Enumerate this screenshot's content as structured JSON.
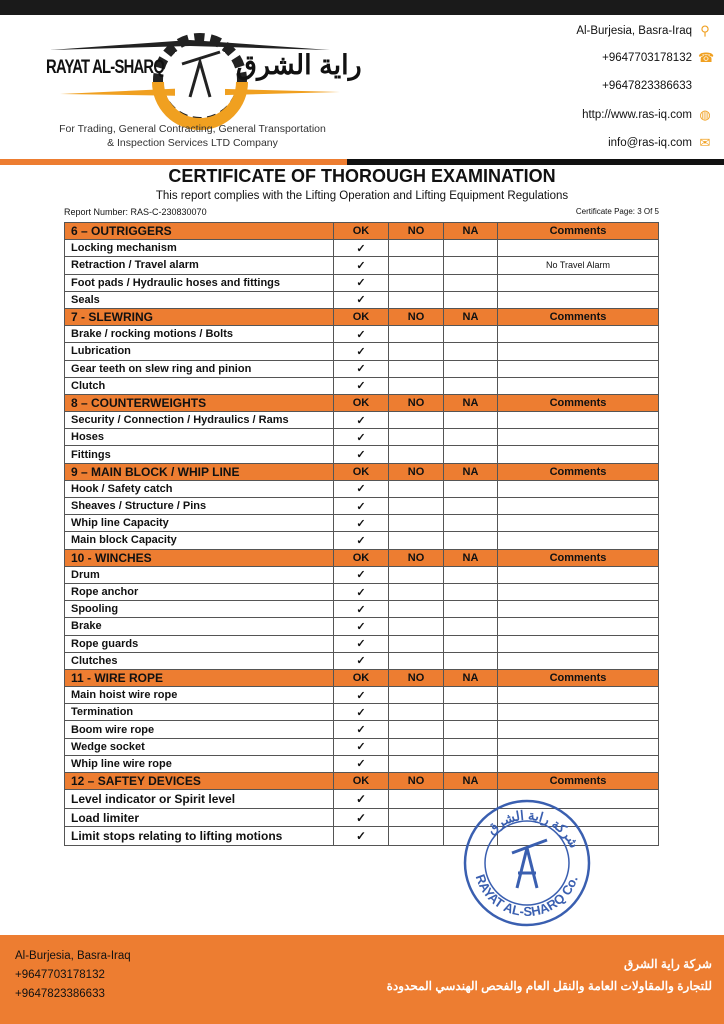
{
  "header": {
    "logo_en": "RAYAT AL-SHARQ",
    "logo_ar": "راية الشرق",
    "tagline": [
      "For Trading, General Contracting, General Transportation",
      "& Inspection Services LTD Company"
    ],
    "contacts": [
      {
        "text": "Al-Burjesia, Basra-Iraq",
        "icon": "location-pin-icon"
      },
      {
        "text": "+9647703178132",
        "icon": "phone-icon"
      },
      {
        "text": "+9647823386633",
        "icon": ""
      },
      {
        "text": "http://www.ras-iq.com",
        "icon": "globe-icon"
      },
      {
        "text": "info@ras-iq.com",
        "icon": "mail-icon"
      }
    ]
  },
  "title": "CERTIFICATE OF THOROUGH EXAMINATION",
  "subtitle": "This report complies with the Lifting Operation and Lifting Equipment Regulations",
  "report_number": "Report Number: RAS-C-230830070",
  "certificate_page": "Certificate Page: 3 Of 5",
  "columns": {
    "ok": "OK",
    "no": "NO",
    "na": "NA",
    "comments": "Comments"
  },
  "check_mark": "✓",
  "sections": [
    {
      "title": "6 – OUTRIGGERS",
      "items": [
        {
          "label": "Locking mechanism",
          "ok": true,
          "comment": ""
        },
        {
          "label": "Retraction / Travel alarm",
          "ok": true,
          "comment": "No Travel Alarm"
        },
        {
          "label": "Foot pads / Hydraulic hoses and fittings",
          "ok": true,
          "comment": ""
        },
        {
          "label": "Seals",
          "ok": true,
          "comment": ""
        }
      ]
    },
    {
      "title": "7 - SLEWRING",
      "items": [
        {
          "label": "Brake / rocking motions / Bolts",
          "ok": true,
          "comment": ""
        },
        {
          "label": "Lubrication",
          "ok": true,
          "comment": ""
        },
        {
          "label": "Gear teeth on slew ring and pinion",
          "ok": true,
          "comment": ""
        },
        {
          "label": "Clutch",
          "ok": true,
          "comment": ""
        }
      ]
    },
    {
      "title": "8 – COUNTERWEIGHTS",
      "items": [
        {
          "label": "Security / Connection / Hydraulics / Rams",
          "ok": true,
          "comment": ""
        },
        {
          "label": "Hoses",
          "ok": true,
          "comment": ""
        },
        {
          "label": "Fittings",
          "ok": true,
          "comment": ""
        }
      ]
    },
    {
      "title": "9 – MAIN BLOCK / WHIP LINE",
      "items": [
        {
          "label": "Hook /  Safety catch",
          "ok": true,
          "comment": ""
        },
        {
          "label": "Sheaves / Structure / Pins",
          "ok": true,
          "comment": ""
        },
        {
          "label": "Whip line Capacity",
          "ok": true,
          "comment": ""
        },
        {
          "label": "Main block Capacity",
          "ok": true,
          "comment": ""
        }
      ]
    },
    {
      "title": "10 - WINCHES",
      "items": [
        {
          "label": "Drum",
          "ok": true,
          "comment": ""
        },
        {
          "label": "Rope anchor",
          "ok": true,
          "comment": ""
        },
        {
          "label": "Spooling",
          "ok": true,
          "comment": ""
        },
        {
          "label": "Brake",
          "ok": true,
          "comment": ""
        },
        {
          "label": "Rope guards",
          "ok": true,
          "comment": ""
        },
        {
          "label": "Clutches",
          "ok": true,
          "comment": ""
        }
      ]
    },
    {
      "title": "11 - WIRE ROPE",
      "items": [
        {
          "label": "Main hoist wire rope",
          "ok": true,
          "comment": ""
        },
        {
          "label": "Termination",
          "ok": true,
          "comment": ""
        },
        {
          "label": "Boom wire rope",
          "ok": true,
          "comment": ""
        },
        {
          "label": "Wedge socket",
          "ok": true,
          "comment": ""
        },
        {
          "label": "Whip line wire rope",
          "ok": true,
          "comment": ""
        }
      ]
    },
    {
      "title": "12 – SAFTEY DEVICES",
      "big": true,
      "items": [
        {
          "label": "Level indicator or Spirit level",
          "ok": true,
          "comment": ""
        },
        {
          "label": "Load limiter",
          "ok": true,
          "comment": ""
        },
        {
          "label": "Limit stops relating to lifting motions",
          "ok": true,
          "comment": ""
        }
      ]
    }
  ],
  "stamp": {
    "text_en": "RAYAT AL-SHARQ Co.",
    "text_ar": "شركة راية الشرق"
  },
  "footer": {
    "left": [
      "Al-Burjesia, Basra-Iraq",
      "+9647703178132",
      "+9647823386633"
    ],
    "right": [
      "شركة راية الشرق",
      "للتجارة والمقاولات العامة والنقل العام والفحص الهندسي المحدودة"
    ]
  },
  "colors": {
    "accent": "#ed7d31",
    "dark": "#1a1a1a",
    "stamp": "#3a5fb0"
  }
}
